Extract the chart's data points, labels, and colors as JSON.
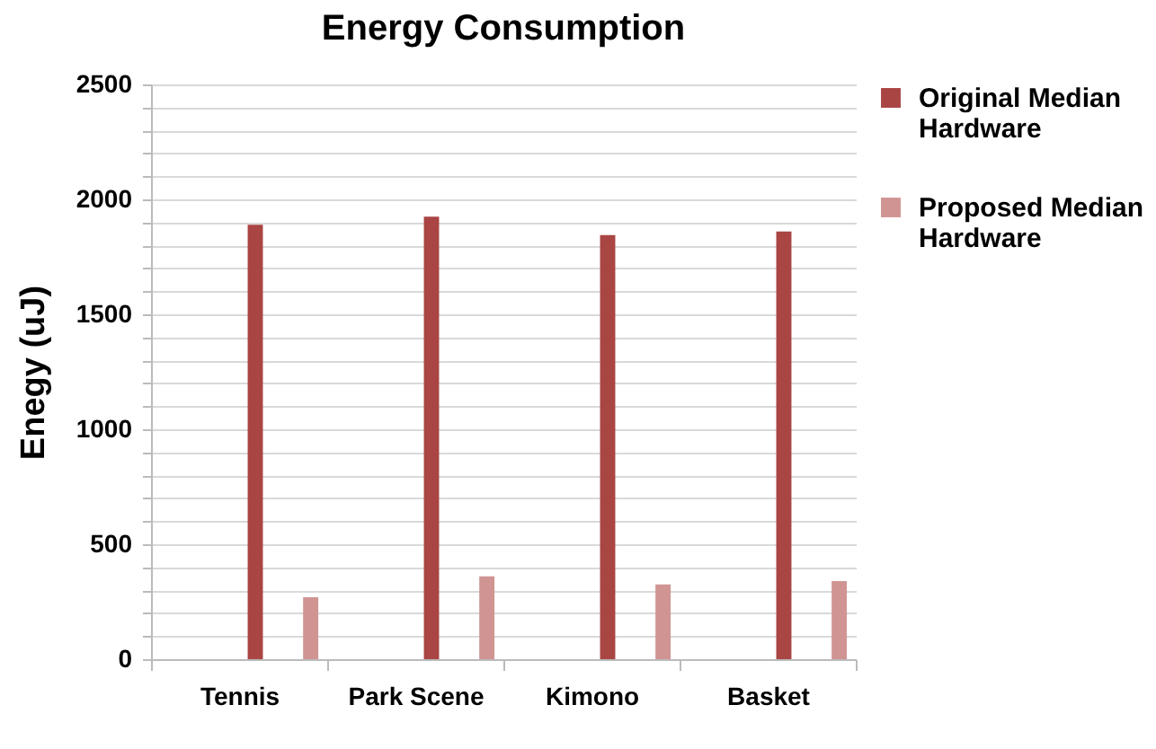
{
  "chart_data": {
    "type": "bar",
    "title": "Energy Consumption",
    "ylabel": "Enegy (uJ)",
    "categories": [
      "Tennis",
      "Park Scene",
      "Kimono",
      "Basket"
    ],
    "series": [
      {
        "name": "Original Median Hardware",
        "color": "#a94543",
        "values": [
          1890,
          1925,
          1845,
          1860
        ]
      },
      {
        "name": "Proposed Median Hardware",
        "color": "#d09593",
        "values": [
          270,
          360,
          325,
          340
        ]
      }
    ],
    "ylim": [
      0,
      2500
    ],
    "yticks": [
      0,
      {
        "value": 100,
        "label": null
      },
      {
        "value": 200,
        "label": null
      },
      {
        "value": 300,
        "label": null
      },
      {
        "value": 400,
        "label": null
      },
      500,
      {
        "value": 600,
        "label": null
      },
      {
        "value": 700,
        "label": null
      },
      {
        "value": 800,
        "label": null
      },
      {
        "value": 900,
        "label": null
      },
      1000,
      {
        "value": 1100,
        "label": null
      },
      {
        "value": 1200,
        "label": null
      },
      {
        "value": 1300,
        "label": null
      },
      {
        "value": 1400,
        "label": null
      },
      1500,
      {
        "value": 1600,
        "label": null
      },
      {
        "value": 1700,
        "label": null
      },
      {
        "value": 1800,
        "label": null
      },
      {
        "value": 1900,
        "label": null
      },
      2000,
      {
        "value": 2100,
        "label": null
      },
      {
        "value": 2200,
        "label": null
      },
      {
        "value": 2300,
        "label": null
      },
      {
        "value": 2400,
        "label": null
      },
      2500
    ],
    "grid": true,
    "legend": "right"
  }
}
